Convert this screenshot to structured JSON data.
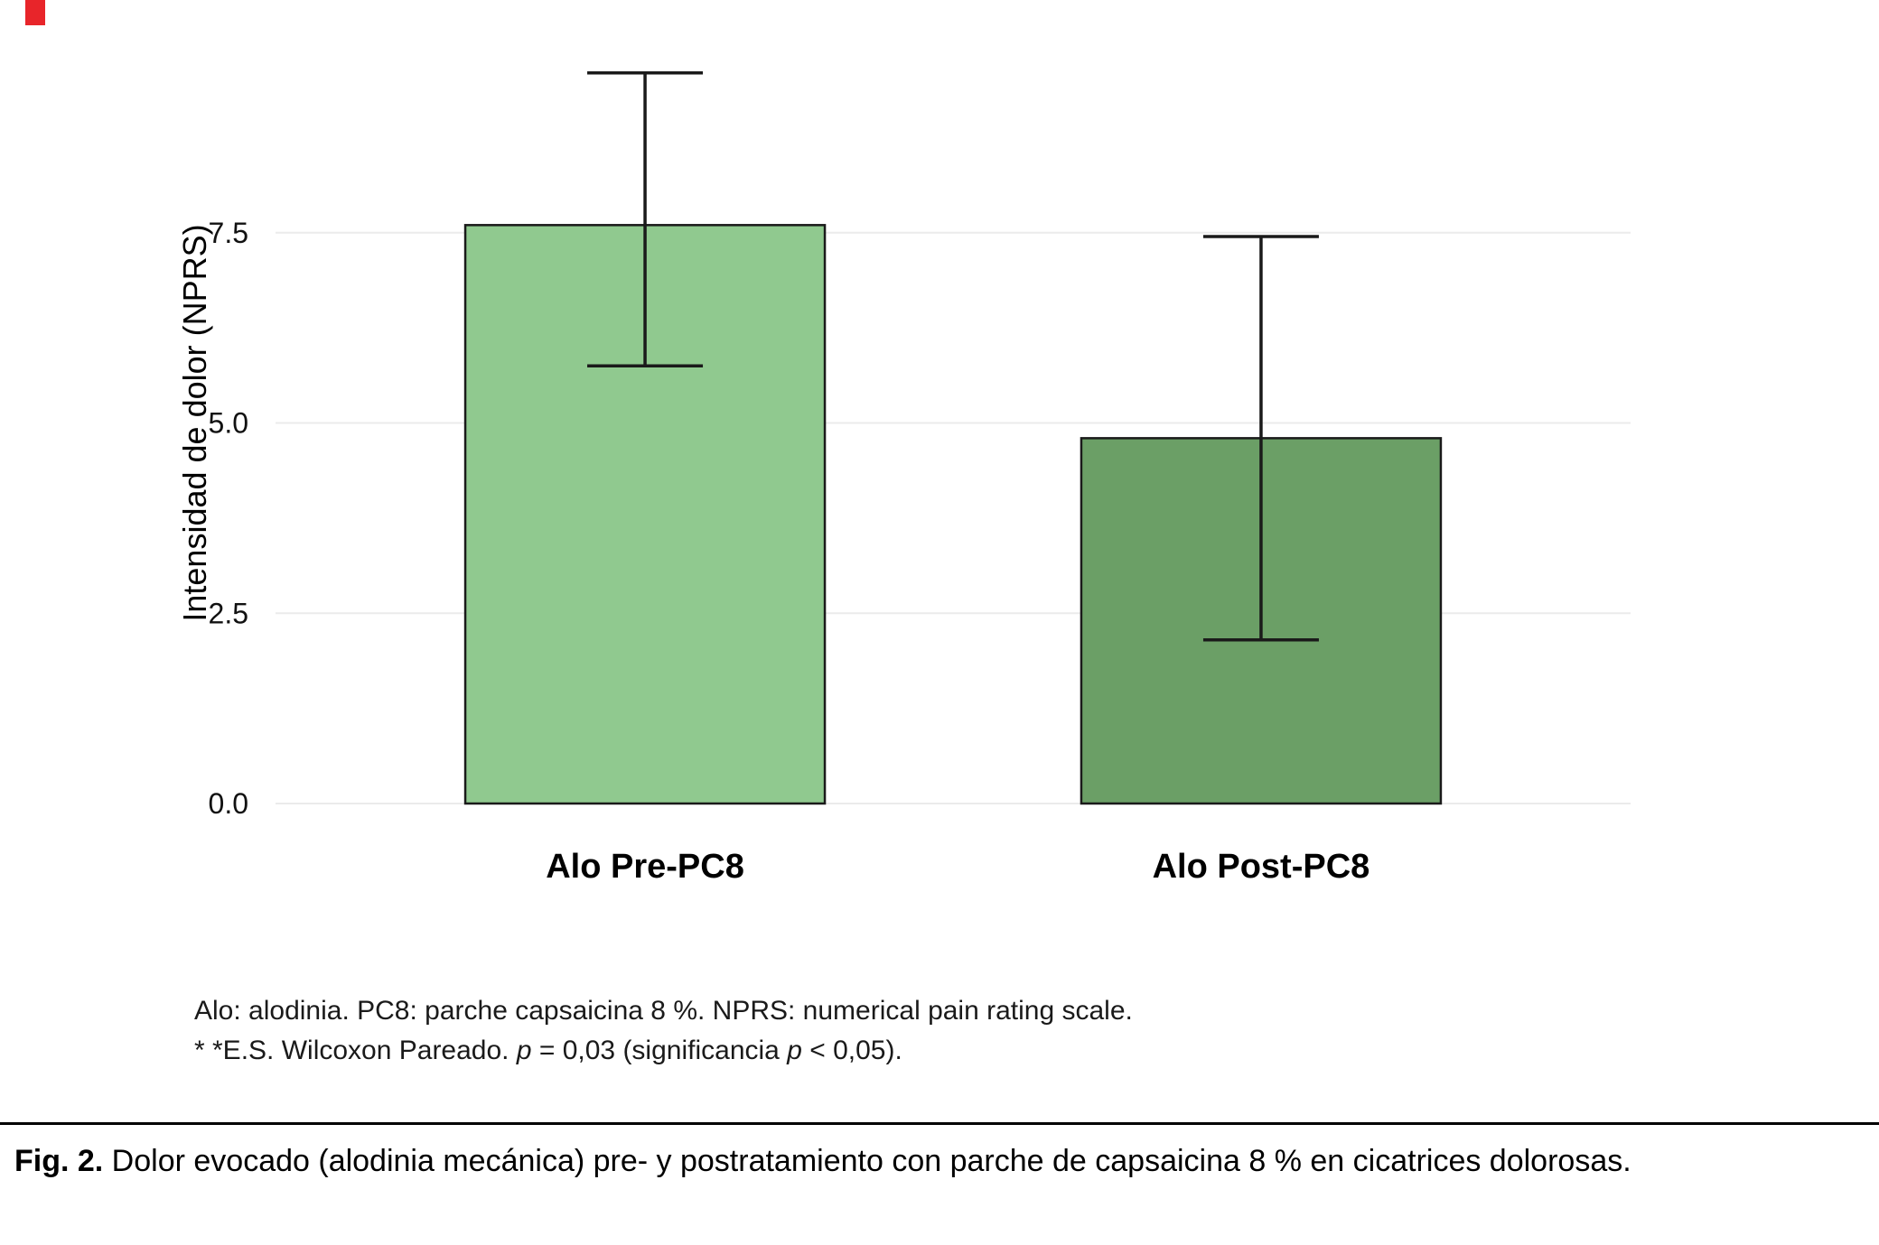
{
  "figure": {
    "caption_label": "Fig. 2.",
    "caption_text": " Dolor evocado (alodinia mecánica) pre- y postratamiento con parche de capsaicina 8 % en cicatrices dolorosas."
  },
  "footnotes": {
    "line1": "Alo: alodinia. PC8: parche capsaicina 8 %. NPRS: numerical pain rating scale.",
    "line2": {
      "seg1": "* *E.S. Wilcoxon Pareado. ",
      "seg2": "p",
      "seg3": " = 0,03 (significancia ",
      "seg4": "p",
      "seg5": " < 0,05)."
    }
  },
  "chart_data": {
    "type": "bar",
    "title": "",
    "categories": [
      "Alo Pre-PC8",
      "Alo Post-PC8"
    ],
    "values": [
      7.6,
      4.8
    ],
    "error_low": [
      5.75,
      2.15
    ],
    "error_high": [
      9.6,
      7.45
    ],
    "bar_colors": [
      "#90c98f",
      "#6b9f66"
    ],
    "bar_edge_color": "#1a1a1a",
    "xlabel": "",
    "ylabel": "Intensidad de dolor (NPRS)",
    "ylim": [
      0,
      10
    ],
    "yticks": [
      {
        "value": 0,
        "label": "0.0"
      },
      {
        "value": 2.5,
        "label": "2.5"
      },
      {
        "value": 5,
        "label": "5.0"
      },
      {
        "value": 7.5,
        "label": "7.5"
      }
    ],
    "grid": "horizontal",
    "grid_color": "#ebebeb",
    "legend": "none"
  }
}
